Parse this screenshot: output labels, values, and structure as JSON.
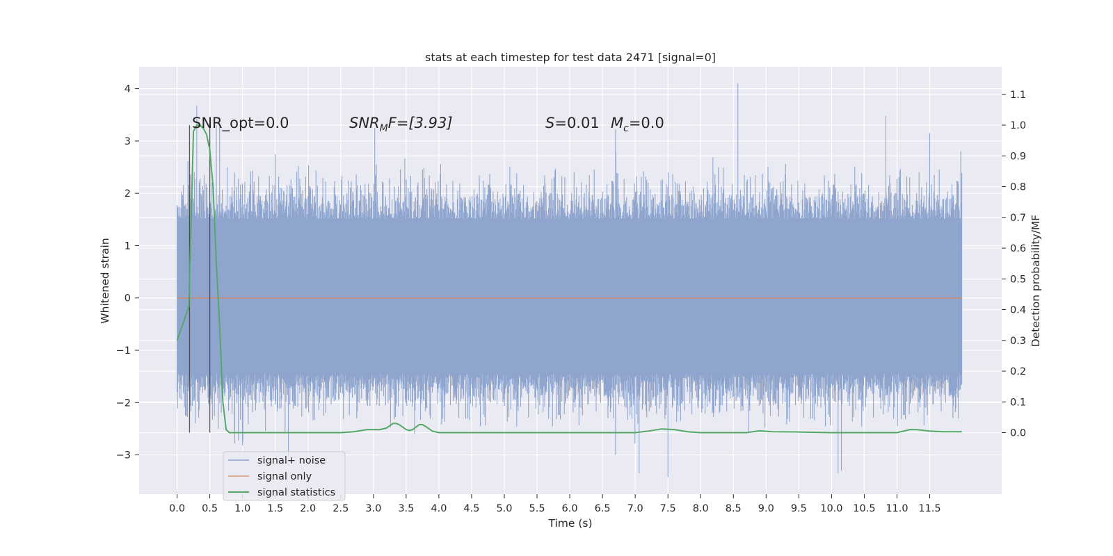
{
  "chart_data": {
    "type": "line",
    "title": "stats at each timestep for test data 2471 [signal=0]",
    "xlabel": "Time (s)",
    "ylabel_left": "Whitened strain",
    "ylabel_right": "Detection probability/MF",
    "xlim": [
      -0.58,
      12.6
    ],
    "ylim_left": [
      -3.75,
      4.42
    ],
    "ylim_right": [
      -0.2,
      1.19
    ],
    "x_ticks": [
      0.0,
      0.5,
      1.0,
      1.5,
      2.0,
      2.5,
      3.0,
      3.5,
      4.0,
      4.5,
      5.0,
      5.5,
      6.0,
      6.5,
      7.0,
      7.5,
      8.0,
      8.5,
      9.0,
      9.5,
      10.0,
      10.5,
      11.0,
      11.5
    ],
    "x_tick_labels": [
      "0.0",
      "0.5",
      "1.0",
      "1.5",
      "2.0",
      "2.5",
      "3.0",
      "3.5",
      "4.0",
      "4.5",
      "5.0",
      "5.5",
      "6.0",
      "6.5",
      "7.0",
      "7.5",
      "8.0",
      "8.5",
      "9.0",
      "9.5",
      "10.0",
      "10.5",
      "11.0",
      "11.5"
    ],
    "y_left_ticks": [
      -3,
      -2,
      -1,
      0,
      1,
      2,
      3,
      4
    ],
    "y_left_tick_labels": [
      "−3",
      "−2",
      "−1",
      "0",
      "1",
      "2",
      "3",
      "4"
    ],
    "y_right_ticks": [
      0.0,
      0.1,
      0.2,
      0.3,
      0.4,
      0.5,
      0.6,
      0.7,
      0.8,
      0.9,
      1.0,
      1.1
    ],
    "y_right_tick_labels": [
      "0.0",
      "0.1",
      "0.2",
      "0.3",
      "0.4",
      "0.5",
      "0.6",
      "0.7",
      "0.8",
      "0.9",
      "1.0",
      "1.1"
    ],
    "grid": true,
    "legend_placement": "lower left",
    "annotations": {
      "snr_opt": "SNR_opt=0.0",
      "snr_mf_main": "SNR",
      "snr_mf_sub": "M",
      "snr_mf_rest": "F=[3.93]",
      "s_var": "S",
      "s_rest": "=0.01",
      "mc_var": "M",
      "mc_sub": "c",
      "mc_rest": "=0.0"
    },
    "vertical_markers_x": [
      0.19,
      0.5
    ],
    "vertical_markers_ylim_right": [
      0.0,
      1.0
    ],
    "series": [
      {
        "name": "signal+ noise",
        "color": "#8fa5cd",
        "x_range": [
          0.0,
          11.99
        ],
        "band_2sigma": [
          -1.45,
          1.52
        ],
        "band_peak_typical": [
          -2.3,
          2.3
        ],
        "notable_peaks": [
          {
            "x": 0.3,
            "y": 3.68
          },
          {
            "x": 0.65,
            "y": 3.35
          },
          {
            "x": 0.6,
            "y": 3.3
          },
          {
            "x": 3.02,
            "y": 3.25
          },
          {
            "x": 6.7,
            "y": 3.22
          },
          {
            "x": 8.57,
            "y": 4.1
          },
          {
            "x": 10.83,
            "y": 3.48
          },
          {
            "x": 11.5,
            "y": 3.15
          }
        ],
        "notable_troughs": [
          {
            "x": 1.7,
            "y": -3.05
          },
          {
            "x": 6.7,
            "y": -3.0
          },
          {
            "x": 7.06,
            "y": -3.35
          },
          {
            "x": 7.5,
            "y": -3.43
          },
          {
            "x": 10.1,
            "y": -3.35
          },
          {
            "x": 10.15,
            "y": -3.3
          },
          {
            "x": 1.0,
            "y": -2.82
          },
          {
            "x": 0.88,
            "y": -2.78
          }
        ]
      },
      {
        "name": "signal only",
        "color": "#dd8452",
        "axis": "left",
        "x": [
          0.0,
          11.99
        ],
        "y": [
          0.0,
          0.0
        ]
      },
      {
        "name": "signal statistics",
        "color": "#55a868",
        "axis": "right",
        "x": [
          0.0,
          0.18,
          0.25,
          0.3,
          0.35,
          0.4,
          0.45,
          0.5,
          0.55,
          0.6,
          0.65,
          0.7,
          0.75,
          0.8,
          1.0,
          1.5,
          2.0,
          2.5,
          2.7,
          2.9,
          3.1,
          3.2,
          3.3,
          3.35,
          3.4,
          3.5,
          3.55,
          3.6,
          3.7,
          3.75,
          3.8,
          3.9,
          4.0,
          5.0,
          6.0,
          7.0,
          7.2,
          7.4,
          7.6,
          7.8,
          8.0,
          8.7,
          8.9,
          9.1,
          9.5,
          10.0,
          11.0,
          11.2,
          11.3,
          11.5,
          11.7,
          11.99
        ],
        "y": [
          0.3,
          0.41,
          0.98,
          1.0,
          1.0,
          0.99,
          0.97,
          0.92,
          0.8,
          0.55,
          0.35,
          0.1,
          0.01,
          0.0,
          0.0,
          0.0,
          0.0,
          0.0,
          0.003,
          0.01,
          0.01,
          0.015,
          0.03,
          0.03,
          0.025,
          0.01,
          0.007,
          0.01,
          0.026,
          0.026,
          0.02,
          0.005,
          0.0,
          0.0,
          0.0,
          0.0,
          0.005,
          0.012,
          0.01,
          0.003,
          0.0,
          0.0,
          0.006,
          0.003,
          0.002,
          0.0,
          0.0,
          0.01,
          0.01,
          0.005,
          0.003,
          0.003
        ]
      }
    ]
  }
}
